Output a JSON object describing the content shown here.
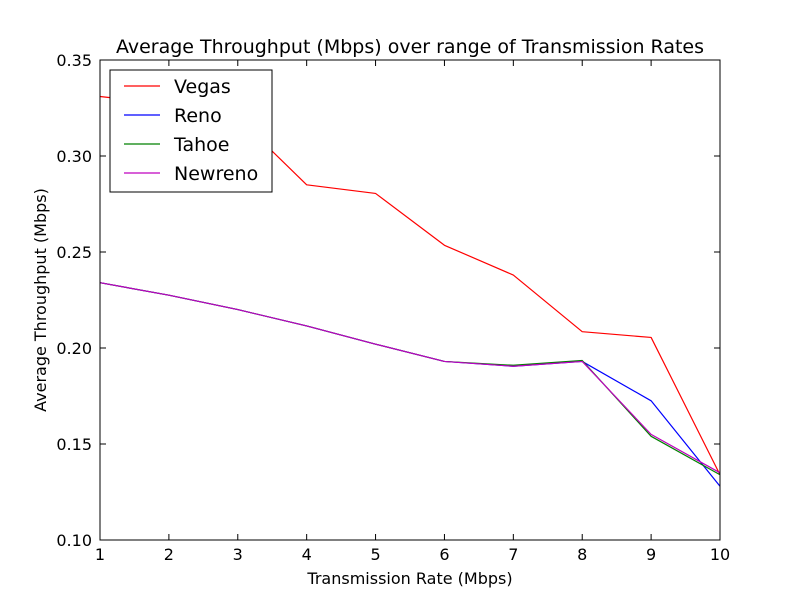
{
  "chart_data": {
    "type": "line",
    "title": "Average Throughput (Mbps) over range of Transmission Rates",
    "xlabel": "Transmission Rate (Mbps)",
    "ylabel": "Average Throughput (Mbps)",
    "xlim": [
      1,
      10
    ],
    "ylim": [
      0.1,
      0.35
    ],
    "x": [
      1,
      2,
      3,
      4,
      5,
      6,
      7,
      8,
      9,
      10
    ],
    "xticks": [
      "1",
      "2",
      "3",
      "4",
      "5",
      "6",
      "7",
      "8",
      "9",
      "10"
    ],
    "yticks": [
      "0.10",
      "0.15",
      "0.20",
      "0.25",
      "0.30",
      "0.35"
    ],
    "ytick_values": [
      0.1,
      0.15,
      0.2,
      0.25,
      0.3,
      0.35
    ],
    "grid": false,
    "legend_position": "top-left",
    "series": [
      {
        "name": "Vegas",
        "color": "#ff0000",
        "values": [
          0.331,
          0.327,
          0.32,
          0.285,
          0.2805,
          0.2535,
          0.238,
          0.2085,
          0.2055,
          0.134
        ]
      },
      {
        "name": "Reno",
        "color": "#0000ff",
        "values": [
          0.234,
          0.2275,
          0.22,
          0.2115,
          0.202,
          0.193,
          0.1905,
          0.193,
          0.1725,
          0.128
        ]
      },
      {
        "name": "Tahoe",
        "color": "#008000",
        "values": [
          0.234,
          0.2275,
          0.22,
          0.2115,
          0.202,
          0.193,
          0.191,
          0.1935,
          0.154,
          0.134
        ]
      },
      {
        "name": "Newreno",
        "color": "#bf00bf",
        "values": [
          0.234,
          0.2275,
          0.22,
          0.2115,
          0.202,
          0.193,
          0.1905,
          0.193,
          0.155,
          0.135
        ]
      }
    ]
  }
}
